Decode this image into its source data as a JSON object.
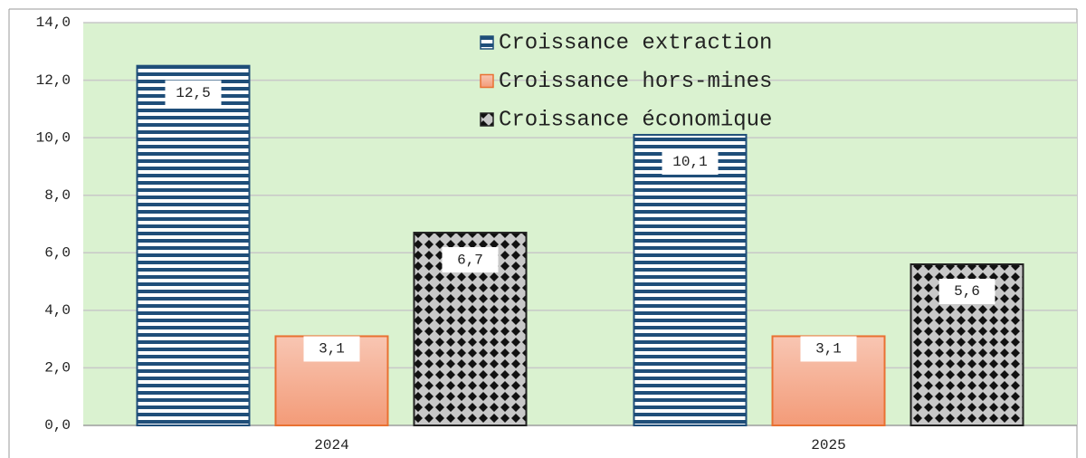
{
  "chart_data": {
    "type": "bar",
    "categories": [
      "2024",
      "2025"
    ],
    "series": [
      {
        "name": "Croissance extraction",
        "color": "#1f4e79",
        "pattern": "stripes",
        "values": [
          12.5,
          10.1
        ],
        "value_labels": [
          "12,5",
          "10,1"
        ]
      },
      {
        "name": "Croissance hors-mines",
        "color": "#f4a07f",
        "pattern": "gradient",
        "values": [
          3.1,
          3.1
        ],
        "value_labels": [
          "3,1",
          "3,1"
        ]
      },
      {
        "name": "Croissance économique",
        "color": "#222222",
        "pattern": "diamonds",
        "values": [
          6.7,
          5.6
        ],
        "value_labels": [
          "6,7",
          "5,6"
        ]
      }
    ],
    "ylim": [
      0,
      14
    ],
    "yticks": [
      {
        "value": 0,
        "label": "0,0"
      },
      {
        "value": 2,
        "label": "2,0"
      },
      {
        "value": 4,
        "label": "4,0"
      },
      {
        "value": 6,
        "label": "6,0"
      },
      {
        "value": 8,
        "label": "8,0"
      },
      {
        "value": 10,
        "label": "10,0"
      },
      {
        "value": 12,
        "label": "12,0"
      },
      {
        "value": 14,
        "label": "14,0"
      }
    ],
    "grid": true,
    "legend": "top-right"
  }
}
